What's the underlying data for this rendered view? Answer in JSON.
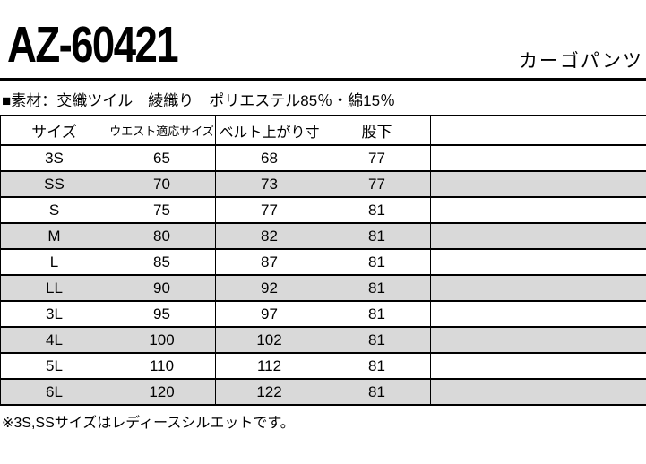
{
  "header": {
    "product_code": "AZ-60421",
    "product_name": "カーゴパンツ"
  },
  "material_line": "■素材：交織ツイル　綾織り　ポリエステル85％・綿15％",
  "size_table": {
    "columns": [
      "サイズ",
      "ウエスト適応サイズ",
      "ベルト上がり寸",
      "股下",
      "",
      ""
    ],
    "rows": [
      {
        "size": "3S",
        "waist": "65",
        "belt_rise": "68",
        "inseam": "77"
      },
      {
        "size": "SS",
        "waist": "70",
        "belt_rise": "73",
        "inseam": "77"
      },
      {
        "size": "S",
        "waist": "75",
        "belt_rise": "77",
        "inseam": "81"
      },
      {
        "size": "M",
        "waist": "80",
        "belt_rise": "82",
        "inseam": "81"
      },
      {
        "size": "L",
        "waist": "85",
        "belt_rise": "87",
        "inseam": "81"
      },
      {
        "size": "LL",
        "waist": "90",
        "belt_rise": "92",
        "inseam": "81"
      },
      {
        "size": "3L",
        "waist": "95",
        "belt_rise": "97",
        "inseam": "81"
      },
      {
        "size": "4L",
        "waist": "100",
        "belt_rise": "102",
        "inseam": "81"
      },
      {
        "size": "5L",
        "waist": "110",
        "belt_rise": "112",
        "inseam": "81"
      },
      {
        "size": "6L",
        "waist": "120",
        "belt_rise": "122",
        "inseam": "81"
      }
    ]
  },
  "note": "※3S,SSサイズはレディースシルエットです。",
  "colors": {
    "stripe": "#d9d9d9",
    "border": "#000000",
    "text": "#000000",
    "background": "#ffffff"
  }
}
